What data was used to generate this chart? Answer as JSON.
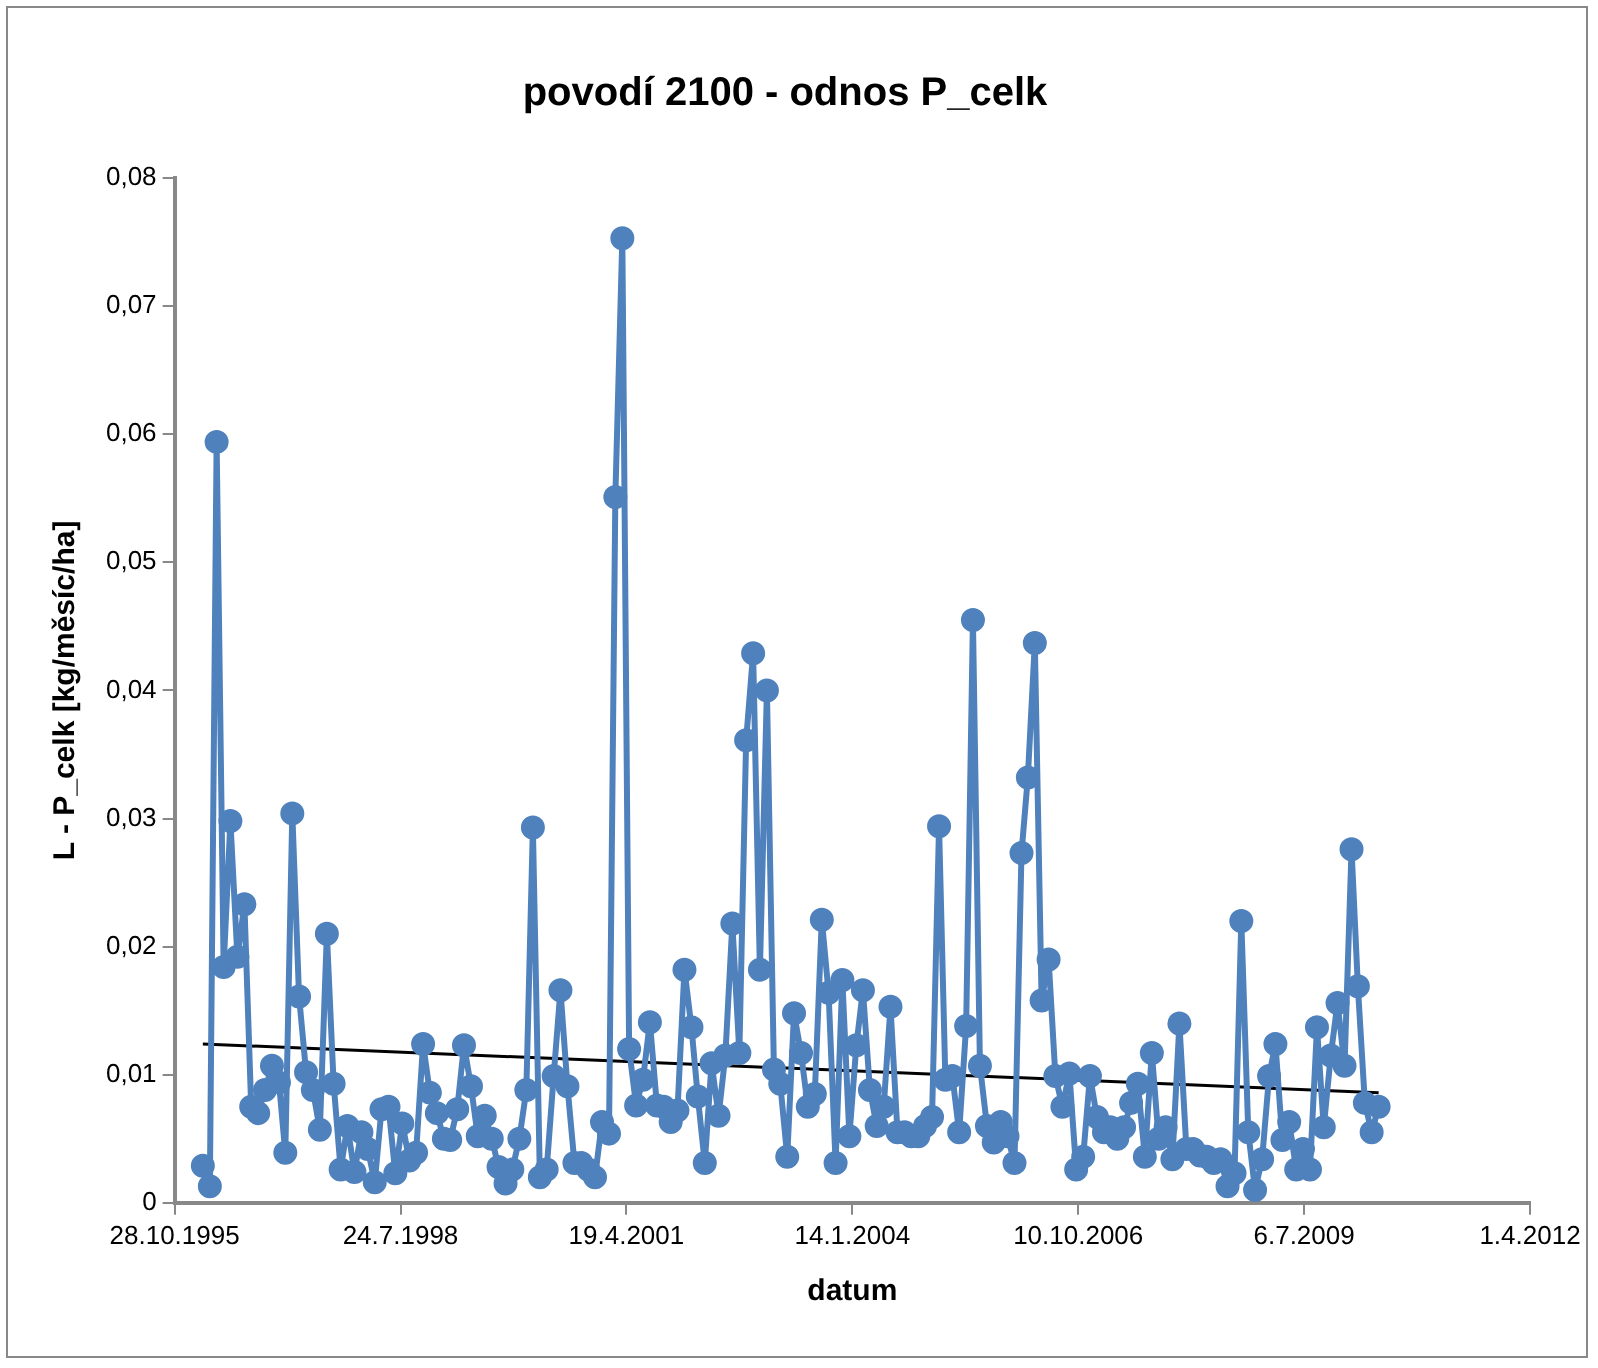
{
  "chart_data": {
    "type": "line",
    "title": "povodí 2100 - odnos P_celk",
    "xlabel": "datum",
    "ylabel": "L - P_celk [kg/měsíc/ha]",
    "xlim": [
      "1995-10-28",
      "2012-04-01"
    ],
    "xticks": [
      {
        "value": "1995-10-28",
        "label": "28.10.1995"
      },
      {
        "value": "1998-07-24",
        "label": "24.7.1998"
      },
      {
        "value": "2001-04-19",
        "label": "19.4.2001"
      },
      {
        "value": "2004-01-14",
        "label": "14.1.2004"
      },
      {
        "value": "2006-10-10",
        "label": "10.10.2006"
      },
      {
        "value": "2009-07-06",
        "label": "6.7.2009"
      },
      {
        "value": "2012-04-01",
        "label": "1.4.2012"
      }
    ],
    "ylim": [
      0,
      0.08
    ],
    "yticks": [
      0,
      {
        "value": 0.01,
        "label": "0,01"
      },
      {
        "value": 0.02,
        "label": "0,02"
      },
      {
        "value": 0.03,
        "label": "0,03"
      },
      {
        "value": 0.04,
        "label": "0,04"
      },
      {
        "value": 0.05,
        "label": "0,05"
      },
      {
        "value": 0.06,
        "label": "0,06"
      },
      {
        "value": 0.07,
        "label": "0,07"
      },
      {
        "value": 0.08,
        "label": "0,08"
      }
    ],
    "grid": false,
    "legend": false,
    "series": [
      {
        "type": "line",
        "color": "#4f81bd",
        "marker": "circle",
        "line_style": "solid",
        "x": [
          "1996-03",
          "1996-04",
          "1996-05",
          "1996-06",
          "1996-07",
          "1996-08",
          "1996-09",
          "1996-10",
          "1996-11",
          "1996-12",
          "1997-01",
          "1997-02",
          "1997-03",
          "1997-04",
          "1997-05",
          "1997-06",
          "1997-07",
          "1997-08",
          "1997-09",
          "1997-10",
          "1997-11",
          "1997-12",
          "1998-01",
          "1998-02",
          "1998-03",
          "1998-04",
          "1998-05",
          "1998-06",
          "1998-07",
          "1998-08",
          "1998-09",
          "1998-10",
          "1998-11",
          "1998-12",
          "1999-01",
          "1999-02",
          "1999-03",
          "1999-04",
          "1999-05",
          "1999-06",
          "1999-07",
          "1999-08",
          "1999-09",
          "1999-10",
          "1999-11",
          "1999-12",
          "2000-01",
          "2000-02",
          "2000-03",
          "2000-04",
          "2000-05",
          "2000-06",
          "2000-07",
          "2000-08",
          "2000-09",
          "2000-10",
          "2000-11",
          "2000-12",
          "2001-01",
          "2001-02",
          "2001-03",
          "2001-04",
          "2001-05",
          "2001-06",
          "2001-07",
          "2001-08",
          "2001-09",
          "2001-10",
          "2001-11",
          "2001-12",
          "2002-01",
          "2002-02",
          "2002-03",
          "2002-04",
          "2002-05",
          "2002-06",
          "2002-07",
          "2002-08",
          "2002-09",
          "2002-10",
          "2002-11",
          "2002-12",
          "2003-01",
          "2003-02",
          "2003-03",
          "2003-04",
          "2003-05",
          "2003-06",
          "2003-07",
          "2003-08",
          "2003-09",
          "2003-10",
          "2003-11",
          "2003-12",
          "2004-01",
          "2004-02",
          "2004-03",
          "2004-04",
          "2004-05",
          "2004-06",
          "2004-07",
          "2004-08",
          "2004-09",
          "2004-10",
          "2004-11",
          "2004-12",
          "2005-01",
          "2005-02",
          "2005-03",
          "2005-04",
          "2005-05",
          "2005-06",
          "2005-07",
          "2005-08",
          "2005-09",
          "2005-10",
          "2005-11",
          "2005-12",
          "2006-01",
          "2006-02",
          "2006-03",
          "2006-04",
          "2006-05",
          "2006-06",
          "2006-07",
          "2006-08",
          "2006-09",
          "2006-10",
          "2006-11",
          "2006-12",
          "2007-01",
          "2007-02",
          "2007-03",
          "2007-04",
          "2007-05",
          "2007-06",
          "2007-07",
          "2007-08",
          "2007-09",
          "2007-10",
          "2007-11",
          "2007-12",
          "2008-01",
          "2008-02",
          "2008-03",
          "2008-04",
          "2008-05",
          "2008-06",
          "2008-07",
          "2008-08",
          "2008-09",
          "2008-10",
          "2008-11",
          "2008-12",
          "2009-01",
          "2009-02",
          "2009-03",
          "2009-04",
          "2009-05",
          "2009-06",
          "2009-07",
          "2009-08",
          "2009-09",
          "2009-10",
          "2009-11",
          "2009-12",
          "2010-01",
          "2010-02",
          "2010-03",
          "2010-04",
          "2010-05",
          "2010-06"
        ],
        "values": [
          0.0029,
          0.0013,
          0.0594,
          0.0184,
          0.0298,
          0.0192,
          0.0233,
          0.0075,
          0.007,
          0.0088,
          0.0107,
          0.0094,
          0.0039,
          0.0304,
          0.0161,
          0.0102,
          0.0088,
          0.0057,
          0.021,
          0.0093,
          0.0026,
          0.006,
          0.0024,
          0.0055,
          0.0042,
          0.0016,
          0.0073,
          0.0075,
          0.0023,
          0.0062,
          0.0033,
          0.0039,
          0.0124,
          0.0086,
          0.007,
          0.005,
          0.0049,
          0.0073,
          0.0123,
          0.0091,
          0.0052,
          0.0068,
          0.005,
          0.0028,
          0.0015,
          0.0026,
          0.005,
          0.0088,
          0.0293,
          0.002,
          0.0026,
          0.0099,
          0.0166,
          0.0091,
          0.0031,
          0.0031,
          0.0026,
          0.002,
          0.0063,
          0.0054,
          0.0551,
          0.0753,
          0.012,
          0.0076,
          0.0096,
          0.0141,
          0.0076,
          0.0075,
          0.0063,
          0.0072,
          0.0182,
          0.0137,
          0.0083,
          0.0031,
          0.0109,
          0.0068,
          0.0115,
          0.0218,
          0.0117,
          0.0361,
          0.0429,
          0.0182,
          0.04,
          0.0104,
          0.0093,
          0.0036,
          0.0148,
          0.0117,
          0.0075,
          0.0085,
          0.0221,
          0.0164,
          0.0031,
          0.0174,
          0.0052,
          0.0123,
          0.0166,
          0.0088,
          0.006,
          0.0075,
          0.0153,
          0.0055,
          0.0055,
          0.0052,
          0.0052,
          0.006,
          0.0067,
          0.0294,
          0.0096,
          0.0099,
          0.0055,
          0.0138,
          0.0455,
          0.0107,
          0.006,
          0.0047,
          0.0063,
          0.0052,
          0.0031,
          0.0273,
          0.0332,
          0.0437,
          0.0158,
          0.019,
          0.0099,
          0.0075,
          0.0101,
          0.0026,
          0.0036,
          0.0099,
          0.0067,
          0.0055,
          0.0059,
          0.005,
          0.0059,
          0.0078,
          0.0093,
          0.0036,
          0.0117,
          0.005,
          0.0059,
          0.0034,
          0.014,
          0.0042,
          0.0042,
          0.0037,
          0.0036,
          0.0031,
          0.0034,
          0.0013,
          0.0023,
          0.022,
          0.0055,
          0.001,
          0.0034,
          0.0099,
          0.0124,
          0.0049,
          0.0063,
          0.0026,
          0.0042,
          0.0026,
          0.0137,
          0.0059,
          0.0115,
          0.0156,
          0.0107,
          0.0276,
          0.0169,
          0.0078,
          0.0055,
          0.0075
        ]
      },
      {
        "type": "line",
        "color": "#000000",
        "marker": "none",
        "line_style": "solid",
        "x": [
          "1996-03",
          "2010-06"
        ],
        "values": [
          0.0124,
          0.0086
        ]
      }
    ]
  }
}
